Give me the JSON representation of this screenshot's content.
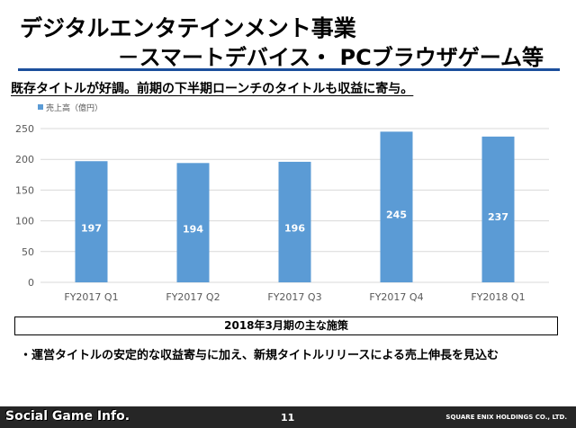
{
  "header": {
    "title_line1": "デジタルエンタテインメント事業",
    "title_line2": "－スマートデバイス・ PCブラウザゲーム等",
    "subtitle": "既存タイトルが好調。前期の下半期ローンチのタイトルも収益に寄与。",
    "accent_color": "#1b4f9c"
  },
  "chart_data": {
    "type": "bar",
    "categories": [
      "FY2017 Q1",
      "FY2017 Q2",
      "FY2017 Q3",
      "FY2017 Q4",
      "FY2018  Q1"
    ],
    "series": [
      {
        "name": "売上高（億円）",
        "values": [
          197,
          194,
          196,
          245,
          237
        ],
        "color": "#5b9bd5"
      }
    ],
    "ylim": [
      0,
      250
    ],
    "yticks": [
      0,
      50,
      100,
      150,
      200,
      250
    ],
    "grid": true,
    "legend": "top-left",
    "data_labels": true
  },
  "summary_box": {
    "heading": "2018年3月期の主な施策",
    "bullet": "・運営タイトルの安定的な収益寄与に加え、新規タイトルリリースによる売上伸長を見込む"
  },
  "footer": {
    "watermark": "Social Game Info.",
    "page_number": "11",
    "company": "SQUARE ENIX HOLDINGS CO., LTD."
  }
}
